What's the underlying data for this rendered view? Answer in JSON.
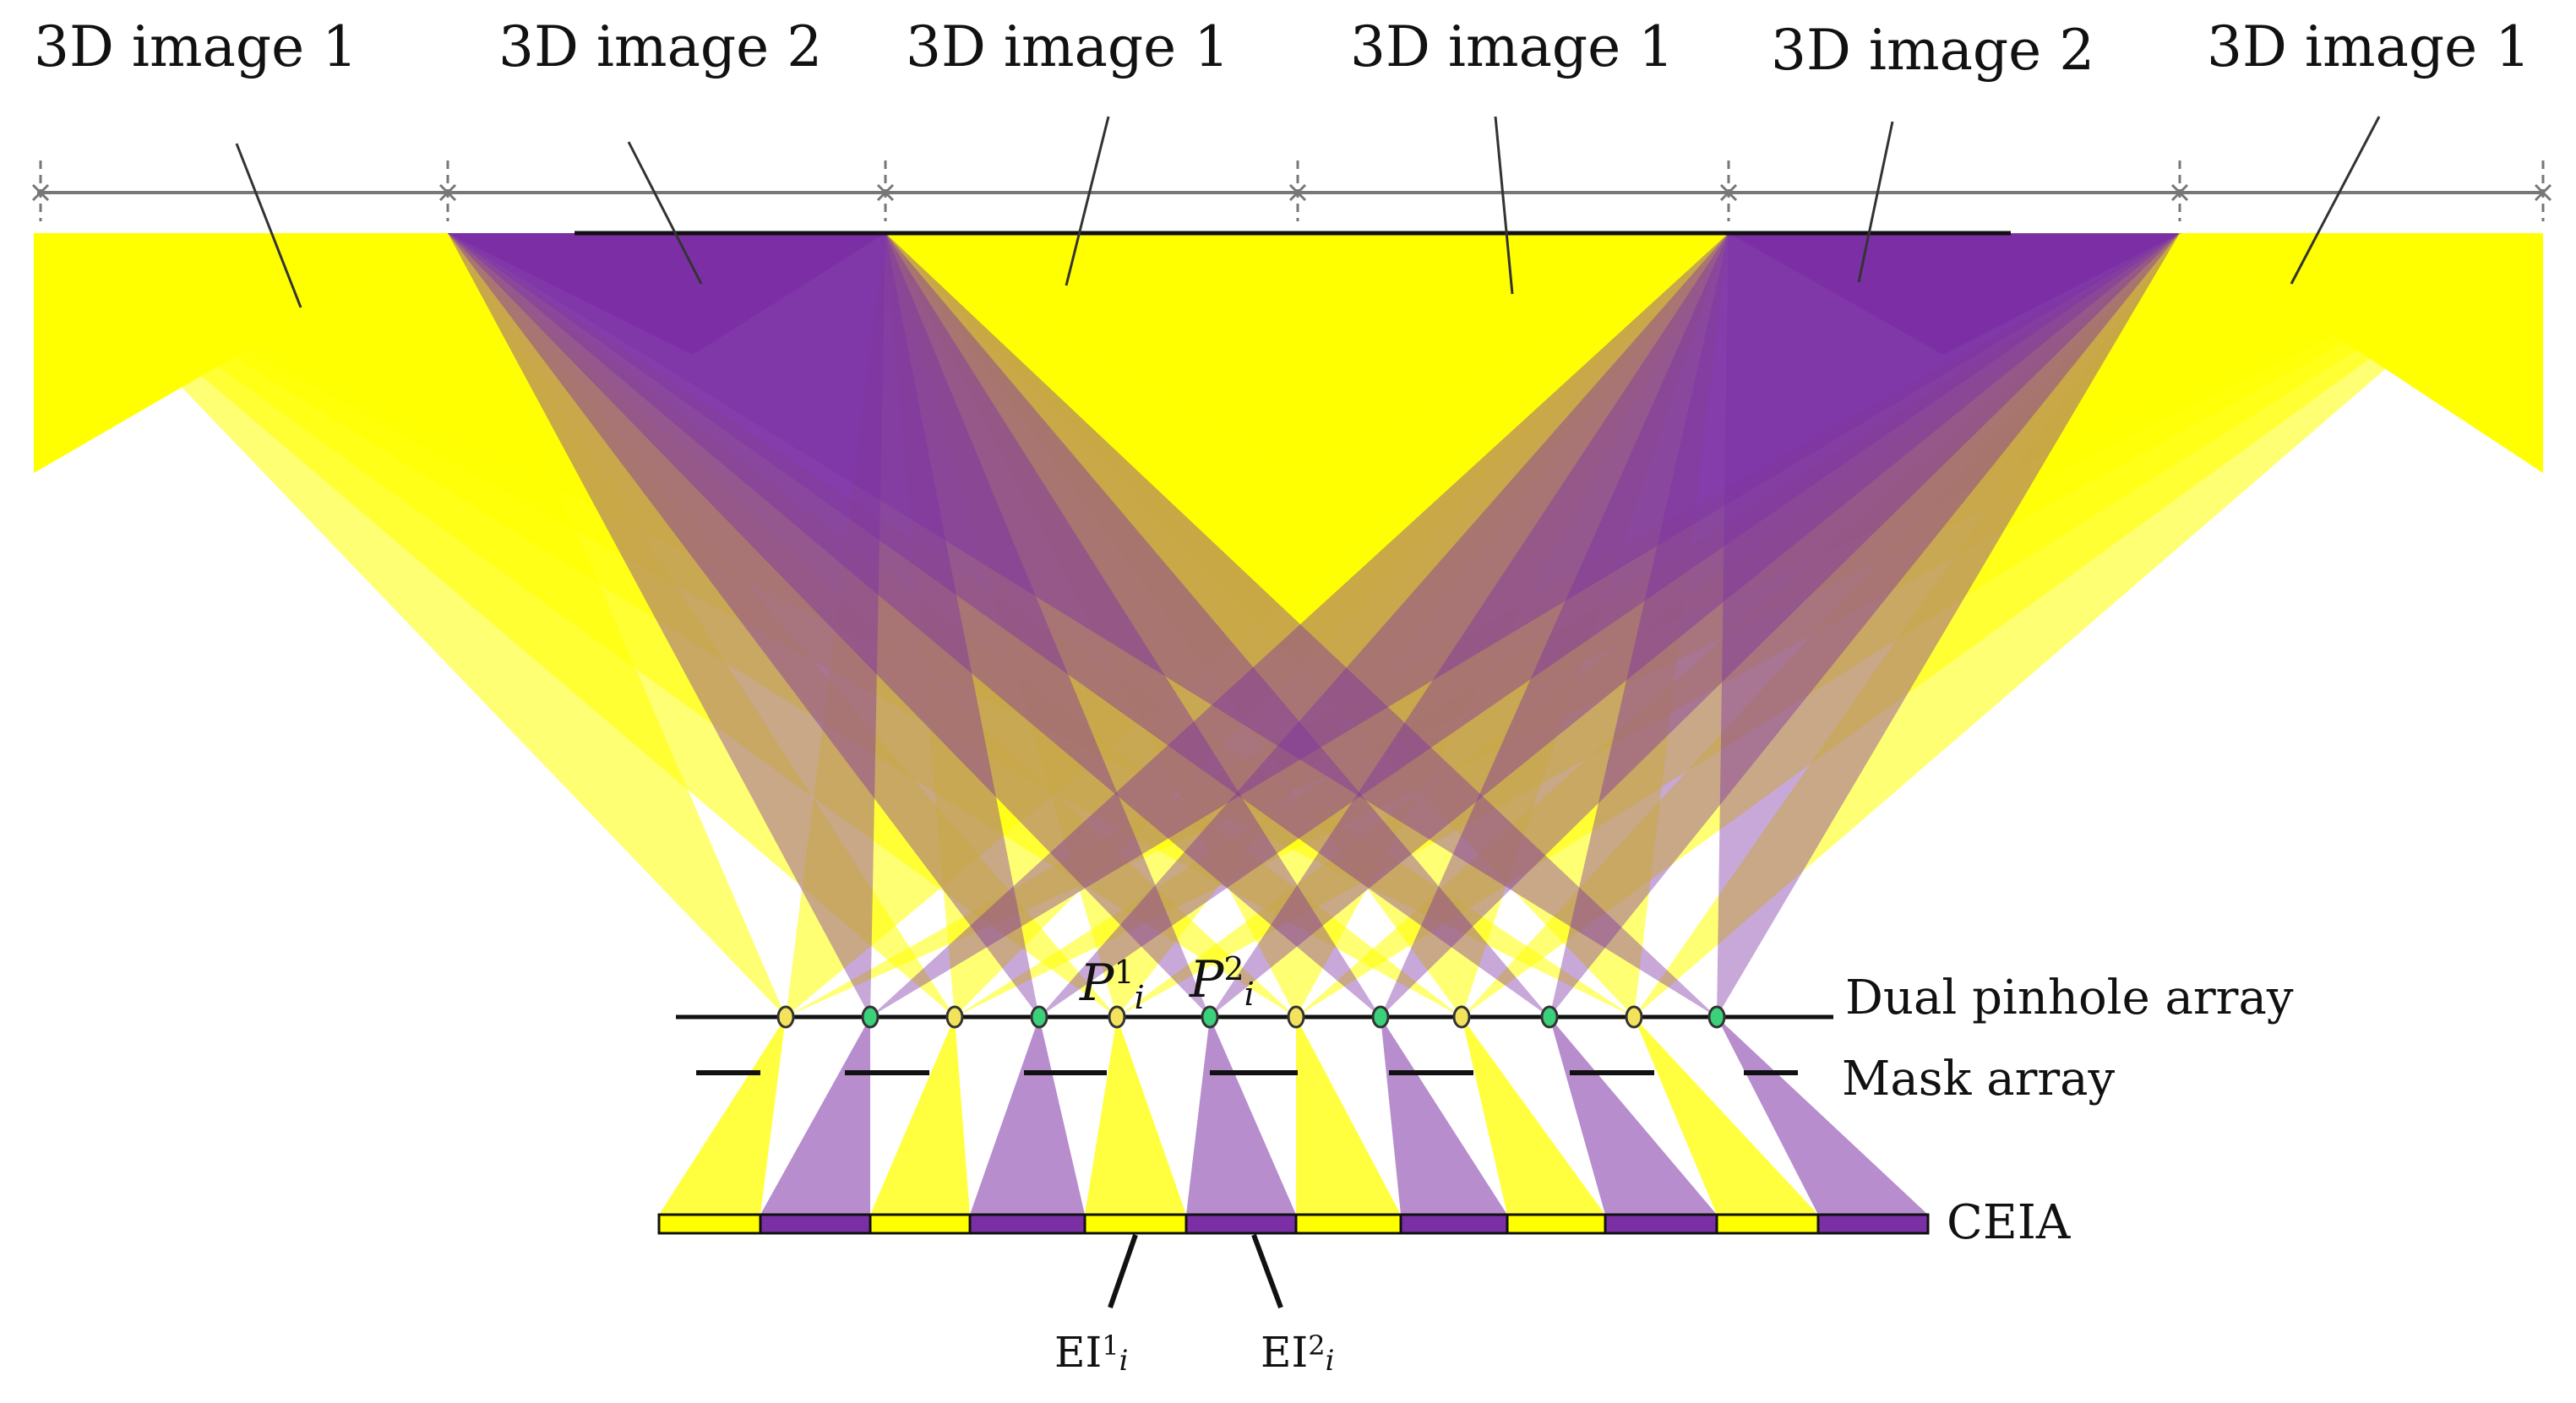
{
  "colors": {
    "image1": "#ffff00",
    "image2": "#7b2fa5",
    "pinhole_1": "#f3e25c",
    "pinhole_2": "#3ad17a",
    "line": "#111111",
    "dimension_line": "#777777"
  },
  "zones": [
    {
      "label": "3D image 1",
      "image": 1
    },
    {
      "label": "3D image 2",
      "image": 2
    },
    {
      "label": "3D image 1",
      "image": 1
    },
    {
      "label": "3D image 1",
      "image": 1
    },
    {
      "label": "3D image 2",
      "image": 2
    },
    {
      "label": "3D image 1",
      "image": 1
    }
  ],
  "labels": {
    "dual_pinhole_array": "Dual pinhole array",
    "mask_array": "Mask array",
    "ceia": "CEIA"
  },
  "pinhole_symbols": [
    {
      "base": "P",
      "sup": "1",
      "sub": "i"
    },
    {
      "base": "P",
      "sup": "2",
      "sub": "i"
    }
  ],
  "elemental_images": [
    {
      "base": "EI",
      "sup": "1",
      "sub": "i"
    },
    {
      "base": "EI",
      "sup": "2",
      "sub": "i"
    }
  ],
  "ceia_segments": [
    1,
    2,
    1,
    2,
    1,
    2,
    1,
    2,
    1,
    2,
    1,
    2
  ],
  "pinholes": [
    1,
    2,
    1,
    2,
    1,
    2,
    1,
    2,
    1,
    2,
    1,
    2
  ]
}
